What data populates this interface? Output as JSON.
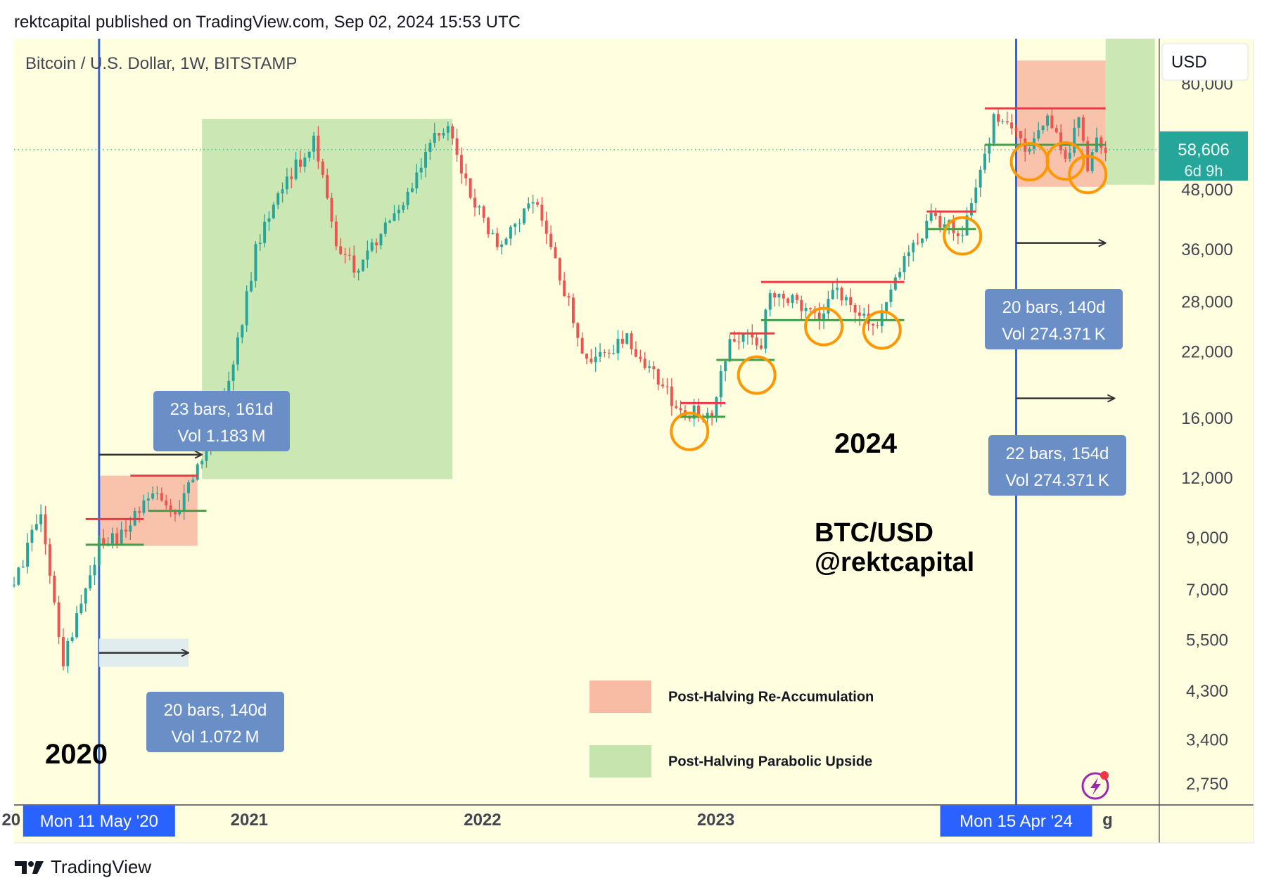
{
  "header": {
    "publisher_line": "rektcapital published on TradingView.com, Sep 02, 2024 15:53 UTC"
  },
  "footer": {
    "brand": "TradingView"
  },
  "chart_data": {
    "type": "candlestick",
    "symbol_line": "Bitcoin / U.S. Dollar, 1W, BITSTAMP",
    "currency_button": "USD",
    "scale": "log",
    "ylim": [
      2500,
      100000
    ],
    "x_range": [
      "2019-12-30",
      "2024-11-25"
    ],
    "y_ticks": [
      80000,
      48000,
      36000,
      28000,
      22000,
      16000,
      12000,
      9000,
      7000,
      5500,
      4300,
      3400,
      2750
    ],
    "y_tick_labels": [
      "80,000",
      "48,000",
      "36,000",
      "28,000",
      "22,000",
      "16,000",
      "12,000",
      "9,000",
      "7,000",
      "5,500",
      "4,300",
      "3,400",
      "2,750"
    ],
    "x_ticks": [
      {
        "date": "2021-01-01",
        "label": "2021"
      },
      {
        "date": "2022-01-01",
        "label": "2022"
      },
      {
        "date": "2023-01-01",
        "label": "2023"
      }
    ],
    "x_tick_partial": [
      {
        "date": "2020-01-01",
        "label": "20"
      },
      {
        "date": "2024-01-01",
        "label": "2"
      },
      {
        "date": "2024-09-05",
        "label": "g"
      }
    ],
    "last_price": {
      "value": 58606,
      "label": "58,606",
      "countdown": "6d 9h"
    },
    "price_path": [
      [
        "2019-12-30",
        7200
      ],
      [
        "2020-02-10",
        10300
      ],
      [
        "2020-03-16",
        5000
      ],
      [
        "2020-05-11",
        8800
      ],
      [
        "2020-06-22",
        9200
      ],
      [
        "2020-07-27",
        11300
      ],
      [
        "2020-09-07",
        10200
      ],
      [
        "2020-10-26",
        13600
      ],
      [
        "2020-12-14",
        23000
      ],
      [
        "2021-01-11",
        36000
      ],
      [
        "2021-02-15",
        48000
      ],
      [
        "2021-04-12",
        61000
      ],
      [
        "2021-05-17",
        38000
      ],
      [
        "2021-06-21",
        32000
      ],
      [
        "2021-07-26",
        40000
      ],
      [
        "2021-09-06",
        47000
      ],
      [
        "2021-10-18",
        63000
      ],
      [
        "2021-11-08",
        67000
      ],
      [
        "2021-12-13",
        47000
      ],
      [
        "2022-01-24",
        37000
      ],
      [
        "2022-03-28",
        46000
      ],
      [
        "2022-05-09",
        30000
      ],
      [
        "2022-06-13",
        21000
      ],
      [
        "2022-08-15",
        23500
      ],
      [
        "2022-10-03",
        19500
      ],
      [
        "2022-11-07",
        16500
      ],
      [
        "2022-12-26",
        16600
      ],
      [
        "2023-01-23",
        23000
      ],
      [
        "2023-02-20",
        24000
      ],
      [
        "2023-03-13",
        22000
      ],
      [
        "2023-03-20",
        28000
      ],
      [
        "2023-04-10",
        30000
      ],
      [
        "2023-06-12",
        25500
      ],
      [
        "2023-07-03",
        30500
      ],
      [
        "2023-08-21",
        26000
      ],
      [
        "2023-09-11",
        25500
      ],
      [
        "2023-10-23",
        34000
      ],
      [
        "2023-12-04",
        42000
      ],
      [
        "2024-01-22",
        39500
      ],
      [
        "2024-02-19",
        52000
      ],
      [
        "2024-03-11",
        68000
      ],
      [
        "2024-04-15",
        63000
      ],
      [
        "2024-05-06",
        58500
      ],
      [
        "2024-06-03",
        69500
      ],
      [
        "2024-07-01",
        56000
      ],
      [
        "2024-07-22",
        67000
      ],
      [
        "2024-08-05",
        54000
      ],
      [
        "2024-08-19",
        62500
      ],
      [
        "2024-09-02",
        58606
      ]
    ],
    "halving_lines": [
      {
        "date": "2020-05-11",
        "label": "Mon 11 May '20"
      },
      {
        "date": "2024-04-15",
        "label": "Mon 15 Apr '24"
      }
    ],
    "zones": [
      {
        "kind": "re-accumulation",
        "from": "2020-05-11",
        "to": "2020-10-12",
        "low": 8700,
        "high": 12200
      },
      {
        "kind": "parabolic",
        "from": "2020-10-19",
        "to": "2021-11-15",
        "low": 12000,
        "high": 68000
      },
      {
        "kind": "re-accumulation",
        "from": "2024-04-15",
        "to": "2024-09-02",
        "low": 49000,
        "high": 90000
      },
      {
        "kind": "parabolic",
        "from": "2024-09-02",
        "to": "2024-11-18",
        "low": 49500,
        "high": 100000
      }
    ],
    "resistance_lines": [
      {
        "from": "2020-04-20",
        "to": "2020-07-20",
        "value": 9900
      },
      {
        "from": "2020-06-29",
        "to": "2020-10-12",
        "value": 12200
      },
      {
        "from": "2022-11-07",
        "to": "2023-01-16",
        "value": 17300
      },
      {
        "from": "2023-01-23",
        "to": "2023-04-03",
        "value": 24200
      },
      {
        "from": "2023-03-13",
        "to": "2023-10-23",
        "value": 31000
      },
      {
        "from": "2023-11-27",
        "to": "2024-02-12",
        "value": 43500
      },
      {
        "from": "2024-02-26",
        "to": "2024-09-02",
        "value": 71500
      }
    ],
    "support_lines": [
      {
        "from": "2020-04-20",
        "to": "2020-07-20",
        "value": 8750
      },
      {
        "from": "2020-07-27",
        "to": "2020-10-26",
        "value": 10300
      },
      {
        "from": "2022-11-07",
        "to": "2023-01-16",
        "value": 16200
      },
      {
        "from": "2023-01-02",
        "to": "2023-04-03",
        "value": 21300
      },
      {
        "from": "2023-03-13",
        "to": "2023-10-23",
        "value": 25800
      },
      {
        "from": "2023-11-27",
        "to": "2024-02-12",
        "value": 40000
      },
      {
        "from": "2024-02-26",
        "to": "2024-09-02",
        "value": 60000
      }
    ],
    "circles": [
      {
        "date": "2022-11-21",
        "value": 15100
      },
      {
        "date": "2023-03-06",
        "value": 19800
      },
      {
        "date": "2023-06-19",
        "value": 25000
      },
      {
        "date": "2023-09-18",
        "value": 24600
      },
      {
        "date": "2024-01-22",
        "value": 38700
      },
      {
        "date": "2024-05-06",
        "value": 55300
      },
      {
        "date": "2024-07-01",
        "value": 55500
      },
      {
        "date": "2024-08-05",
        "value": 52000
      }
    ],
    "arrows": [
      {
        "from": "2020-05-11",
        "to": "2020-10-19",
        "value": 13500
      },
      {
        "from": "2020-05-11",
        "to": "2020-09-28",
        "value": 5200,
        "shaded": true
      },
      {
        "from": "2024-04-15",
        "to": "2024-09-02",
        "value": 37400
      },
      {
        "from": "2024-04-15",
        "to": "2024-09-16",
        "value": 17700
      }
    ],
    "measure_boxes": [
      {
        "line1": "23 bars, 161d",
        "line2": "Vol 1.183 M"
      },
      {
        "line1": "20 bars, 140d",
        "line2": "Vol 1.072 M"
      },
      {
        "line1": "20 bars, 140d",
        "line2": "Vol 274.371 K"
      },
      {
        "line1": "22 bars, 154d",
        "line2": "Vol 274.371 K"
      }
    ],
    "annotations": [
      "2020",
      "2024",
      "BTC/USD",
      "@rektcapital"
    ],
    "legend": [
      {
        "label": "Post-Halving Re-Accumulation",
        "color": "#f8bca5"
      },
      {
        "label": "Post-Halving Parabolic Upside",
        "color": "#c5e4ae"
      }
    ],
    "colors": {
      "background": "#ffffe0",
      "up": "#26a69a",
      "down": "#ef5350",
      "halving_line": "#2962ff",
      "resistance": "#f23645",
      "support": "#43a047",
      "circle": "#ff9800",
      "measure_box": "#6a8fc7"
    }
  }
}
